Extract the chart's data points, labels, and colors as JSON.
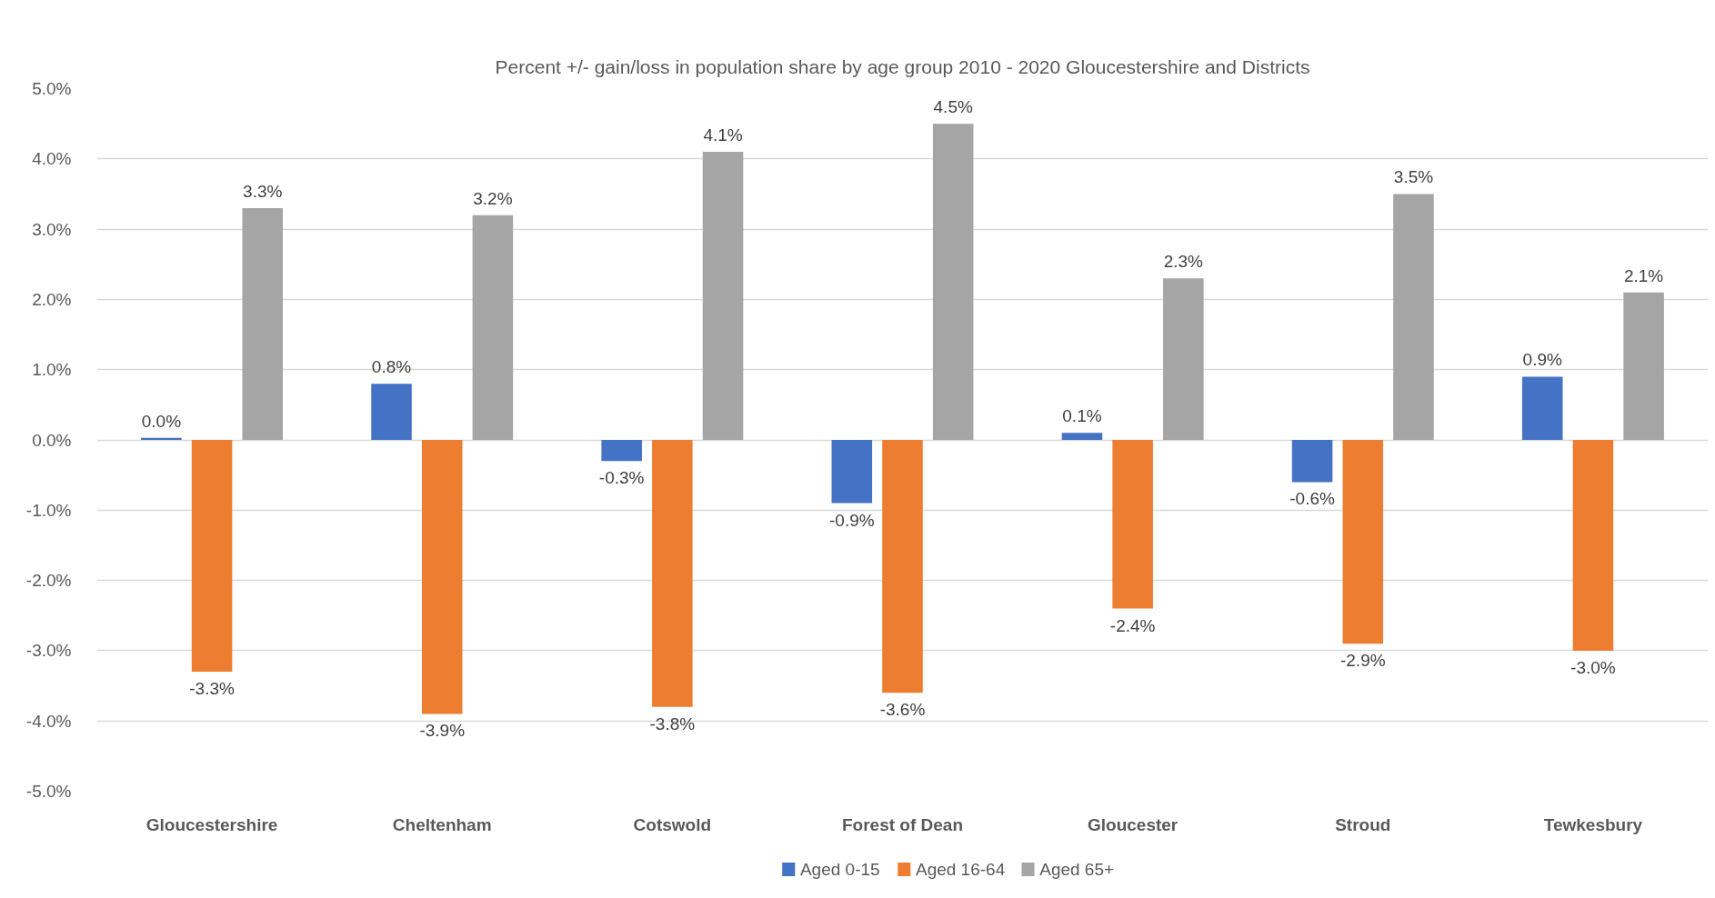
{
  "chart_data": {
    "type": "bar",
    "title": "Percent +/- gain/loss in population share by age group 2010 - 2020 Gloucestershire and Districts",
    "categories": [
      "Gloucestershire",
      "Cheltenham",
      "Cotswold",
      "Forest of Dean",
      "Gloucester",
      "Stroud",
      "Tewkesbury"
    ],
    "series": [
      {
        "name": "Aged 0-15",
        "color": "#4472c4",
        "values": [
          0.03,
          0.8,
          -0.3,
          -0.9,
          0.1,
          -0.6,
          0.9
        ],
        "value_labels": [
          "0.0%",
          "0.8%",
          "-0.3%",
          "-0.9%",
          "0.1%",
          "-0.6%",
          "0.9%"
        ]
      },
      {
        "name": "Aged 16-64",
        "color": "#ed7d31",
        "values": [
          -3.3,
          -3.9,
          -3.8,
          -3.6,
          -2.4,
          -2.9,
          -3.0
        ],
        "value_labels": [
          "-3.3%",
          "-3.9%",
          "-3.8%",
          "-3.6%",
          "-2.4%",
          "-2.9%",
          "-3.0%"
        ]
      },
      {
        "name": "Aged 65+",
        "color": "#a5a5a5",
        "values": [
          3.3,
          3.2,
          4.1,
          4.5,
          2.3,
          3.5,
          2.1
        ],
        "value_labels": [
          "3.3%",
          "3.2%",
          "4.1%",
          "4.5%",
          "2.3%",
          "3.5%",
          "2.1%"
        ]
      }
    ],
    "ylim": [
      -5,
      5
    ],
    "yticks": [
      {
        "value": -5,
        "label": "-5.0%"
      },
      {
        "value": -4,
        "label": "-4.0%"
      },
      {
        "value": -3,
        "label": "-3.0%"
      },
      {
        "value": -2,
        "label": "-2.0%"
      },
      {
        "value": -1,
        "label": "-1.0%"
      },
      {
        "value": 0,
        "label": "0.0%"
      },
      {
        "value": 1,
        "label": "1.0%"
      },
      {
        "value": 2,
        "label": "2.0%"
      },
      {
        "value": 3,
        "label": "3.0%"
      },
      {
        "value": 4,
        "label": "4.0%"
      },
      {
        "value": 5,
        "label": "5.0%"
      }
    ],
    "grid": "y",
    "legend": "bottom"
  }
}
